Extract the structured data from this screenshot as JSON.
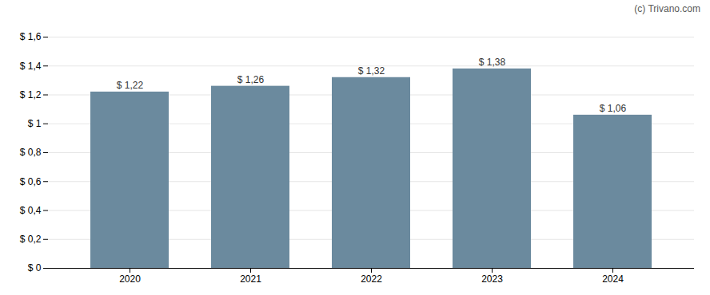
{
  "chart_data": {
    "type": "bar",
    "annotation": "(c) Trivano.com",
    "categories": [
      "2020",
      "2021",
      "2022",
      "2023",
      "2024"
    ],
    "values": [
      1.22,
      1.26,
      1.32,
      1.38,
      1.06
    ],
    "value_labels": [
      "$ 1,22",
      "$ 1,26",
      "$ 1,32",
      "$ 1,38",
      "$ 1,06"
    ],
    "data_labels": true,
    "color": "#6b8a9e",
    "ylim": [
      0,
      1.6
    ],
    "yticks": [
      {
        "value": 0,
        "label": "$ 0"
      },
      {
        "value": 0.2,
        "label": "$ 0,2"
      },
      {
        "value": 0.4,
        "label": "$ 0,4"
      },
      {
        "value": 0.6,
        "label": "$ 0,6"
      },
      {
        "value": 0.8,
        "label": "$ 0,8"
      },
      {
        "value": 1.0,
        "label": "$ 1"
      },
      {
        "value": 1.2,
        "label": "$ 1,2"
      },
      {
        "value": 1.4,
        "label": "$ 1,4"
      },
      {
        "value": 1.6,
        "label": "$ 1,6"
      }
    ],
    "grid": true
  }
}
